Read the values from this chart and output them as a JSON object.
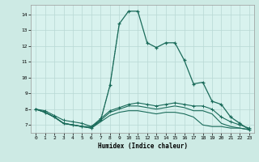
{
  "xlabel": "Humidex (Indice chaleur)",
  "background_color": "#cdeae4",
  "plot_bg_color": "#d8f2ee",
  "grid_color": "#b8d8d4",
  "line_color": "#1a6b5a",
  "xlim": [
    -0.5,
    23.5
  ],
  "ylim": [
    6.5,
    14.6
  ],
  "yticks": [
    7,
    8,
    9,
    10,
    11,
    12,
    13,
    14
  ],
  "xticks": [
    0,
    1,
    2,
    3,
    4,
    5,
    6,
    7,
    8,
    9,
    10,
    11,
    12,
    13,
    14,
    15,
    16,
    17,
    18,
    19,
    20,
    21,
    22,
    23
  ],
  "main_x": [
    0,
    1,
    2,
    3,
    4,
    5,
    6,
    7,
    8,
    9,
    10,
    11,
    12,
    13,
    14,
    15,
    16,
    17,
    18,
    19,
    20,
    21,
    22,
    23
  ],
  "main_y": [
    8.0,
    7.8,
    7.5,
    7.1,
    7.0,
    6.9,
    6.8,
    7.3,
    9.5,
    13.4,
    14.2,
    14.2,
    12.2,
    11.9,
    12.2,
    12.2,
    11.1,
    9.6,
    9.7,
    8.5,
    8.3,
    7.5,
    7.1,
    6.7
  ],
  "flat1_x": [
    0,
    1,
    2,
    3,
    4,
    5,
    6,
    7,
    8,
    9,
    10,
    11,
    12,
    13,
    14,
    15,
    16,
    17,
    18,
    19,
    20,
    21,
    22,
    23
  ],
  "flat1_y": [
    8.0,
    7.9,
    7.6,
    7.3,
    7.2,
    7.1,
    6.9,
    7.4,
    7.9,
    8.1,
    8.3,
    8.4,
    8.3,
    8.2,
    8.3,
    8.4,
    8.3,
    8.2,
    8.2,
    8.0,
    7.5,
    7.2,
    7.0,
    6.8
  ],
  "flat2_x": [
    0,
    1,
    2,
    3,
    4,
    5,
    6,
    7,
    8,
    9,
    10,
    11,
    12,
    13,
    14,
    15,
    16,
    17,
    18,
    19,
    20,
    21,
    22,
    23
  ],
  "flat2_y": [
    8.0,
    7.8,
    7.5,
    7.1,
    7.0,
    6.9,
    6.9,
    7.3,
    7.8,
    8.0,
    8.2,
    8.2,
    8.1,
    8.0,
    8.1,
    8.2,
    8.1,
    7.9,
    7.9,
    7.7,
    7.1,
    6.9,
    6.8,
    6.7
  ],
  "flat3_x": [
    0,
    1,
    2,
    3,
    4,
    5,
    6,
    7,
    8,
    9,
    10,
    11,
    12,
    13,
    14,
    15,
    16,
    17,
    18,
    19,
    20,
    21,
    22,
    23
  ],
  "flat3_y": [
    8.0,
    7.8,
    7.5,
    7.1,
    7.0,
    6.9,
    6.8,
    7.2,
    7.6,
    7.8,
    7.9,
    7.9,
    7.8,
    7.7,
    7.8,
    7.8,
    7.7,
    7.5,
    7.0,
    6.9,
    6.9,
    6.8,
    6.8,
    6.7
  ]
}
